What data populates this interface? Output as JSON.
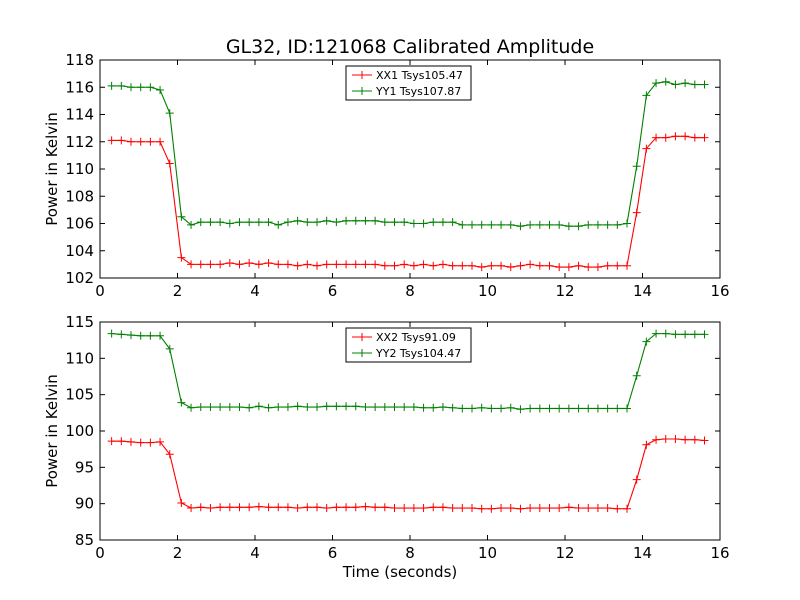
{
  "figure": {
    "title": "GL32, ID:121068 Calibrated Amplitude",
    "background": "#ffffff"
  },
  "chart_data": [
    {
      "type": "line",
      "title": "GL32, ID:121068 Calibrated Amplitude",
      "xlabel": "",
      "ylabel": "Power in Kelvin",
      "xlim": [
        0,
        16
      ],
      "ylim": [
        102,
        118
      ],
      "xticks": [
        0,
        2,
        4,
        6,
        8,
        10,
        12,
        14,
        16
      ],
      "yticks": [
        102,
        104,
        106,
        108,
        110,
        112,
        114,
        116,
        118
      ],
      "grid": false,
      "legend_position": "top-center",
      "x": [
        0.3,
        0.55,
        0.8,
        1.05,
        1.3,
        1.55,
        1.8,
        2.1,
        2.35,
        2.6,
        2.85,
        3.1,
        3.35,
        3.6,
        3.85,
        4.1,
        4.35,
        4.6,
        4.85,
        5.1,
        5.35,
        5.6,
        5.85,
        6.1,
        6.35,
        6.6,
        6.85,
        7.1,
        7.35,
        7.6,
        7.85,
        8.1,
        8.35,
        8.6,
        8.85,
        9.1,
        9.35,
        9.6,
        9.85,
        10.1,
        10.35,
        10.6,
        10.85,
        11.1,
        11.35,
        11.6,
        11.85,
        12.1,
        12.35,
        12.6,
        12.85,
        13.1,
        13.35,
        13.6,
        13.85,
        14.1,
        14.35,
        14.6,
        14.85,
        15.1,
        15.35,
        15.6
      ],
      "series": [
        {
          "name": "XX1 Tsys105.47",
          "color": "#ff0000",
          "values": [
            112.1,
            112.1,
            112.0,
            112.0,
            112.0,
            112.0,
            110.4,
            103.5,
            103.0,
            103.0,
            103.0,
            103.0,
            103.1,
            103.0,
            103.1,
            103.0,
            103.1,
            103.0,
            103.0,
            102.9,
            103.0,
            102.9,
            103.0,
            103.0,
            103.0,
            103.0,
            103.0,
            103.0,
            102.9,
            102.9,
            103.0,
            102.9,
            103.0,
            102.9,
            103.0,
            102.9,
            102.9,
            102.9,
            102.8,
            102.9,
            102.9,
            102.8,
            102.9,
            103.0,
            102.9,
            102.9,
            102.8,
            102.8,
            102.9,
            102.8,
            102.8,
            102.9,
            102.9,
            102.9,
            106.8,
            111.5,
            112.3,
            112.3,
            112.4,
            112.4,
            112.3,
            112.3
          ]
        },
        {
          "name": "YY1 Tsys107.87",
          "color": "#008000",
          "values": [
            116.1,
            116.1,
            116.0,
            116.0,
            116.0,
            115.8,
            114.1,
            106.5,
            105.9,
            106.1,
            106.1,
            106.1,
            106.0,
            106.1,
            106.1,
            106.1,
            106.1,
            105.9,
            106.1,
            106.2,
            106.1,
            106.1,
            106.2,
            106.1,
            106.2,
            106.2,
            106.2,
            106.2,
            106.1,
            106.1,
            106.1,
            106.0,
            106.0,
            106.1,
            106.1,
            106.1,
            105.9,
            105.9,
            105.9,
            105.9,
            105.9,
            105.9,
            105.8,
            105.9,
            105.9,
            105.9,
            105.9,
            105.8,
            105.8,
            105.9,
            105.9,
            105.9,
            105.9,
            106.0,
            110.2,
            115.4,
            116.3,
            116.4,
            116.2,
            116.3,
            116.2,
            116.2
          ]
        }
      ]
    },
    {
      "type": "line",
      "title": "",
      "xlabel": "Time (seconds)",
      "ylabel": "Power in Kelvin",
      "xlim": [
        0,
        16
      ],
      "ylim": [
        85,
        115
      ],
      "xticks": [
        0,
        2,
        4,
        6,
        8,
        10,
        12,
        14,
        16
      ],
      "yticks": [
        85,
        90,
        95,
        100,
        105,
        110,
        115
      ],
      "grid": false,
      "legend_position": "top-center",
      "x": [
        0.3,
        0.55,
        0.8,
        1.05,
        1.3,
        1.55,
        1.8,
        2.1,
        2.35,
        2.6,
        2.85,
        3.1,
        3.35,
        3.6,
        3.85,
        4.1,
        4.35,
        4.6,
        4.85,
        5.1,
        5.35,
        5.6,
        5.85,
        6.1,
        6.35,
        6.6,
        6.85,
        7.1,
        7.35,
        7.6,
        7.85,
        8.1,
        8.35,
        8.6,
        8.85,
        9.1,
        9.35,
        9.6,
        9.85,
        10.1,
        10.35,
        10.6,
        10.85,
        11.1,
        11.35,
        11.6,
        11.85,
        12.1,
        12.35,
        12.6,
        12.85,
        13.1,
        13.35,
        13.6,
        13.85,
        14.1,
        14.35,
        14.6,
        14.85,
        15.1,
        15.35,
        15.6
      ],
      "series": [
        {
          "name": "XX2 Tsys91.09",
          "color": "#ff0000",
          "values": [
            98.6,
            98.6,
            98.5,
            98.4,
            98.4,
            98.5,
            96.8,
            90.1,
            89.4,
            89.5,
            89.4,
            89.5,
            89.5,
            89.5,
            89.5,
            89.6,
            89.5,
            89.5,
            89.5,
            89.4,
            89.5,
            89.5,
            89.4,
            89.5,
            89.5,
            89.5,
            89.6,
            89.5,
            89.5,
            89.4,
            89.4,
            89.4,
            89.4,
            89.5,
            89.5,
            89.4,
            89.4,
            89.4,
            89.3,
            89.3,
            89.4,
            89.4,
            89.3,
            89.4,
            89.4,
            89.4,
            89.4,
            89.5,
            89.4,
            89.4,
            89.4,
            89.4,
            89.3,
            89.3,
            93.3,
            98.1,
            98.8,
            98.9,
            98.9,
            98.8,
            98.8,
            98.7
          ]
        },
        {
          "name": "YY2 Tsys104.47",
          "color": "#008000",
          "values": [
            113.4,
            113.3,
            113.2,
            113.1,
            113.1,
            113.1,
            111.3,
            103.9,
            103.2,
            103.3,
            103.3,
            103.3,
            103.3,
            103.3,
            103.2,
            103.4,
            103.2,
            103.3,
            103.3,
            103.4,
            103.3,
            103.3,
            103.4,
            103.4,
            103.4,
            103.4,
            103.3,
            103.3,
            103.3,
            103.3,
            103.3,
            103.3,
            103.2,
            103.2,
            103.3,
            103.2,
            103.1,
            103.1,
            103.2,
            103.1,
            103.1,
            103.2,
            103.0,
            103.1,
            103.1,
            103.1,
            103.1,
            103.1,
            103.1,
            103.1,
            103.1,
            103.1,
            103.1,
            103.1,
            107.6,
            112.3,
            113.4,
            113.4,
            113.3,
            113.3,
            113.3,
            113.3
          ]
        }
      ]
    }
  ]
}
